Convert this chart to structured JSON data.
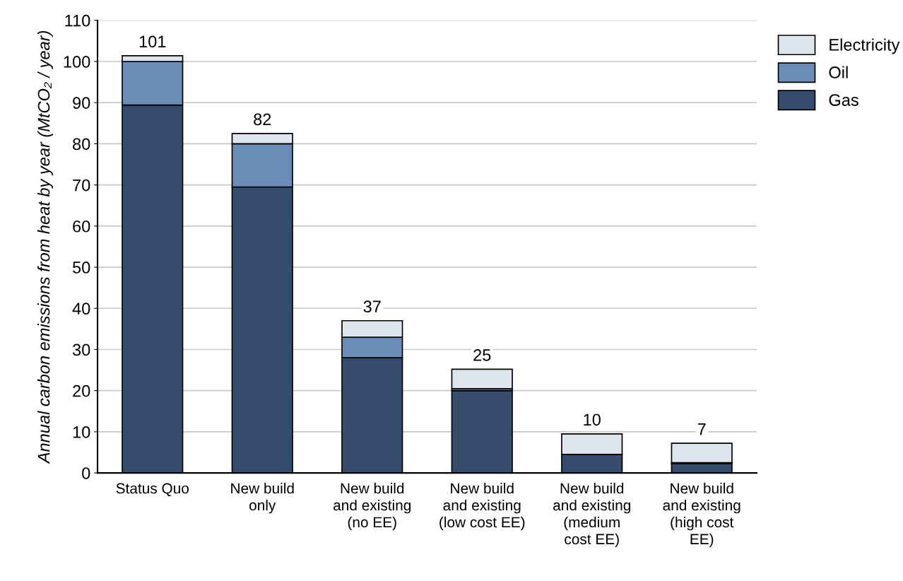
{
  "chart_data": {
    "type": "bar",
    "stacked": true,
    "ylabel": "Annual carbon emissions from heat by year (MtCO₂ / year)",
    "categories": [
      "Status Quo",
      "New build\nonly",
      "New build\nand existing\n(no EE)",
      "New build\nand existing\n(low cost EE)",
      "New build\nand existing\n(medium\ncost EE)",
      "New build\nand existing\n(high cost\nEE)"
    ],
    "series": [
      {
        "name": "Gas",
        "color": "#364c6c",
        "values": [
          89.4,
          69.5,
          28,
          20,
          4.5,
          2.3
        ]
      },
      {
        "name": "Oil",
        "color": "#6c8cb8",
        "values": [
          10.6,
          10.5,
          5,
          0.5,
          null,
          0.2
        ]
      },
      {
        "name": "Electricity",
        "color": "#dfe5ee",
        "values": [
          1.4,
          2.5,
          4,
          4.7,
          5,
          4.7
        ]
      }
    ],
    "totals": [
      "101",
      "82",
      "37",
      "25",
      "10",
      "7"
    ],
    "ylim": [
      0,
      110
    ],
    "yticks": [
      0,
      10,
      20,
      30,
      40,
      50,
      60,
      70,
      80,
      90,
      100,
      110
    ],
    "grid": "y",
    "legend": "top right"
  }
}
